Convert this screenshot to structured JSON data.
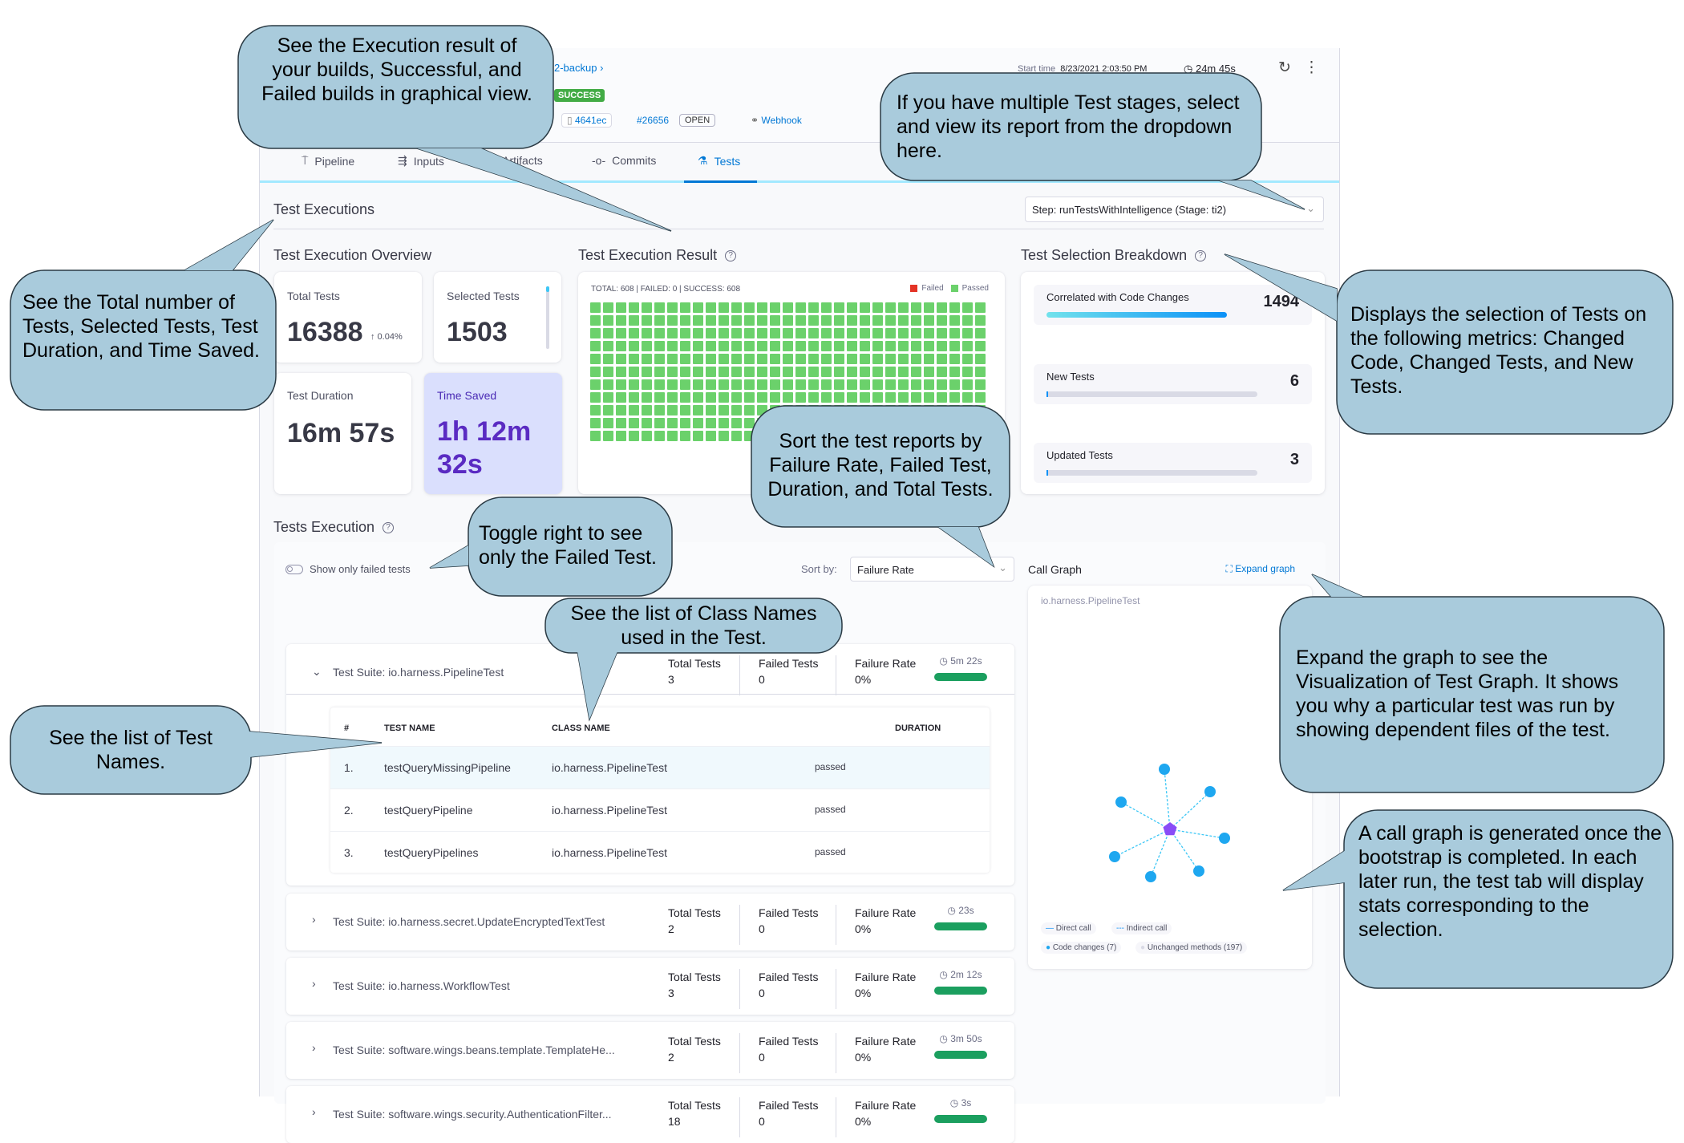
{
  "header": {
    "breadcrumb": "2-backup",
    "status": "SUCCESS",
    "start_time_label": "Start time",
    "start_time": "8/23/2021 2:03:50 PM",
    "duration": "24m 45s",
    "commit": "4641ec",
    "pr": "#26656",
    "pr_state": "OPEN",
    "trigger": "Webhook"
  },
  "tabs": [
    {
      "label": "Pipeline",
      "icon": "pipeline-icon"
    },
    {
      "label": "Inputs",
      "icon": "inputs-icon"
    },
    {
      "label": "Artifacts",
      "icon": "artifacts-icon"
    },
    {
      "label": "Commits",
      "icon": "commit-icon"
    },
    {
      "label": "Tests",
      "icon": "flask-icon",
      "active": true
    }
  ],
  "section_title": "Test Executions",
  "step_select": "Step: runTestsWithIntelligence (Stage: ti2)",
  "overview": {
    "title": "Test Execution Overview",
    "total_label": "Total Tests",
    "total": "16388",
    "total_change": "↑ 0.04%",
    "selected_label": "Selected Tests",
    "selected": "1503",
    "duration_label": "Test Duration",
    "duration": "16m 57s",
    "saved_label": "Time Saved",
    "saved_line1": "1h 12m",
    "saved_line2": "32s"
  },
  "result": {
    "title": "Test Execution Result",
    "summary": "TOTAL: 608 | FAILED: 0 | SUCCESS: 608",
    "legend_failed": "Failed",
    "legend_passed": "Passed",
    "total": 608,
    "failed": 0,
    "passed": 608,
    "colors": {
      "failed": "#e43326",
      "passed": "#6bd16b"
    }
  },
  "breakdown": {
    "title": "Test Selection Breakdown",
    "items": [
      {
        "label": "Correlated with Code Changes",
        "value": "1494",
        "fraction": 0.99
      },
      {
        "label": "New Tests",
        "value": "6",
        "fraction": 0.004
      },
      {
        "label": "Updated Tests",
        "value": "3",
        "fraction": 0.002
      }
    ]
  },
  "tests": {
    "title": "Tests Execution",
    "toggle_label": "Show only failed tests",
    "sort_label": "Sort by:",
    "sort_value": "Failure Rate",
    "metric_labels": {
      "total": "Total Tests",
      "failed": "Failed Tests",
      "rate": "Failure Rate"
    },
    "table_headers": {
      "num": "#",
      "name": "TEST NAME",
      "class": "CLASS NAME",
      "duration": "DURATION"
    },
    "suites": [
      {
        "name": "Test Suite: io.harness.PipelineTest",
        "total": "3",
        "failed": "0",
        "rate": "0%",
        "duration": "5m 22s",
        "expanded": true,
        "rows": [
          {
            "num": "1.",
            "name": "testQueryMissingPipeline",
            "class": "io.harness.PipelineTest",
            "status": "passed"
          },
          {
            "num": "2.",
            "name": "testQueryPipeline",
            "class": "io.harness.PipelineTest",
            "status": "passed"
          },
          {
            "num": "3.",
            "name": "testQueryPipelines",
            "class": "io.harness.PipelineTest",
            "status": "passed"
          }
        ]
      },
      {
        "name": "Test Suite: io.harness.secret.UpdateEncryptedTextTest",
        "total": "2",
        "failed": "0",
        "rate": "0%",
        "duration": "23s"
      },
      {
        "name": "Test Suite: io.harness.WorkflowTest",
        "total": "3",
        "failed": "0",
        "rate": "0%",
        "duration": "2m 12s"
      },
      {
        "name": "Test Suite: software.wings.beans.template.TemplateHe...",
        "total": "2",
        "failed": "0",
        "rate": "0%",
        "duration": "3m 50s"
      },
      {
        "name": "Test Suite: software.wings.security.AuthenticationFilter...",
        "total": "18",
        "failed": "0",
        "rate": "0%",
        "duration": "3s"
      }
    ]
  },
  "call_graph": {
    "title": "Call Graph",
    "expand_label": "Expand graph",
    "class_name": "io.harness.PipelineTest",
    "legend": {
      "direct": "Direct call",
      "indirect": "Indirect call",
      "changes": "Code changes (7)",
      "unchanged": "Unchanged methods (197)"
    },
    "nodes_changed": 7
  },
  "callouts": {
    "execution_result": "See the Execution result of your builds, Successful, and Failed builds in graphical view.",
    "stages": "If you have multiple Test  stages, select and view its report from the dropdown here.",
    "totals": "See the Total number of Tests, Selected Tests, Test Duration, and Time Saved.",
    "selection": "Displays the selection of Tests on the following metrics: Changed Code, Changed Tests, and New Tests.",
    "sort": "Sort the test reports by Failure Rate, Failed Test, Duration, and Total Tests.",
    "toggle": "Toggle right to see only the Failed Test.",
    "class_names": "See the list of Class Names used in the Test.",
    "test_names": "See the list of Test Names.",
    "call_graph": "A call graph is generated once the bootstrap is completed. In each later run, the test tab will display stats corresponding to the selection.",
    "expand": "Expand the graph to see the Visualization of Test Graph. It shows you why a particular test was run by showing dependent files of the test."
  }
}
